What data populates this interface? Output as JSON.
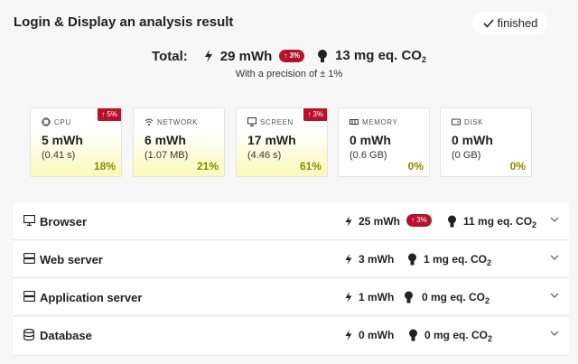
{
  "header": {
    "title": "Login & Display an analysis result",
    "status": "finished"
  },
  "total": {
    "label": "Total:",
    "energy": "29 mWh",
    "badge": "↑ 3%",
    "co2": "13 mg eq. CO",
    "co2_sub": "2",
    "precision": "With a precision of ± 1%"
  },
  "cards": [
    {
      "name": "CPU",
      "value": "5 mWh",
      "detail": "(0.41 s)",
      "share": "18%",
      "badge": "↑ 5%"
    },
    {
      "name": "NETWORK",
      "value": "6 mWh",
      "detail": "(1.07 MB)",
      "share": "21%"
    },
    {
      "name": "SCREEN",
      "value": "17 mWh",
      "detail": "(4.46 s)",
      "share": "61%",
      "badge": "↑ 3%"
    },
    {
      "name": "MEMORY",
      "value": "0 mWh",
      "detail": "(0.6 GB)",
      "share": "0%"
    },
    {
      "name": "DISK",
      "value": "0 mWh",
      "detail": "(0 GB)",
      "share": "0%"
    }
  ],
  "rows": [
    {
      "name": "Browser",
      "energy": "25 mWh",
      "badge": "↑ 3%",
      "co2": "11 mg eq. CO",
      "co2_sub": "2"
    },
    {
      "name": "Web server",
      "energy": "3 mWh",
      "co2": "1 mg eq. CO",
      "co2_sub": "2"
    },
    {
      "name": "Application server",
      "energy": "1 mWh",
      "co2": "0 mg eq. CO",
      "co2_sub": "2"
    },
    {
      "name": "Database",
      "energy": "0 mWh",
      "co2": "0 mg eq. CO",
      "co2_sub": "2"
    }
  ]
}
